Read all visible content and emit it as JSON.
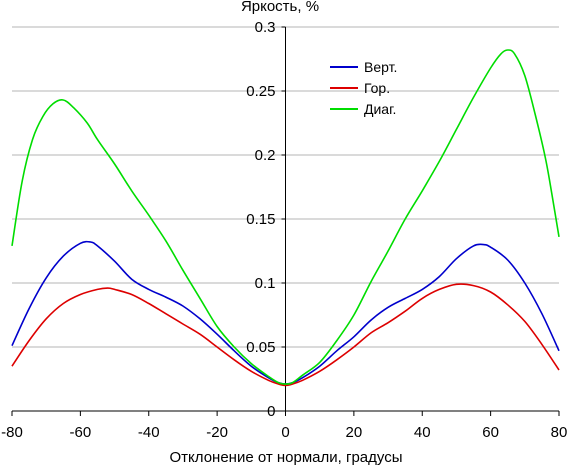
{
  "chart_data": {
    "type": "line",
    "title": "",
    "ylabel": "Яркость, %",
    "xlabel": "Отклонение от нормали, градусы",
    "xlim": [
      -80,
      80
    ],
    "ylim": [
      0,
      0.3
    ],
    "xticks": [
      -80,
      -60,
      -40,
      -20,
      0,
      20,
      40,
      60,
      80
    ],
    "xtick_labels": [
      "-80",
      "-60",
      "-40",
      "-20",
      "0",
      "20",
      "40",
      "60",
      "80"
    ],
    "yticks": [
      0,
      0.05,
      0.1,
      0.15,
      0.2,
      0.25,
      0.3
    ],
    "ytick_labels": [
      "0",
      "0.05",
      "0.1",
      "0.15",
      "0.2",
      "0.25",
      "0.3"
    ],
    "grid": "horizontal",
    "legend_position": "top-right",
    "series": [
      {
        "name": "Верт.",
        "color": "#0000cc",
        "points": [
          [
            -80,
            0.051
          ],
          [
            -75,
            0.08
          ],
          [
            -70,
            0.104
          ],
          [
            -65,
            0.121
          ],
          [
            -60,
            0.131
          ],
          [
            -57,
            0.132
          ],
          [
            -55,
            0.129
          ],
          [
            -50,
            0.117
          ],
          [
            -45,
            0.103
          ],
          [
            -40,
            0.095
          ],
          [
            -35,
            0.089
          ],
          [
            -30,
            0.082
          ],
          [
            -25,
            0.072
          ],
          [
            -20,
            0.06
          ],
          [
            -15,
            0.047
          ],
          [
            -10,
            0.035
          ],
          [
            -5,
            0.026
          ],
          [
            -2,
            0.022
          ],
          [
            0,
            0.021
          ],
          [
            2,
            0.022
          ],
          [
            5,
            0.026
          ],
          [
            10,
            0.035
          ],
          [
            15,
            0.047
          ],
          [
            20,
            0.058
          ],
          [
            25,
            0.071
          ],
          [
            30,
            0.081
          ],
          [
            35,
            0.088
          ],
          [
            40,
            0.095
          ],
          [
            45,
            0.105
          ],
          [
            50,
            0.119
          ],
          [
            55,
            0.129
          ],
          [
            58,
            0.13
          ],
          [
            60,
            0.128
          ],
          [
            65,
            0.118
          ],
          [
            70,
            0.1
          ],
          [
            75,
            0.076
          ],
          [
            80,
            0.047
          ]
        ]
      },
      {
        "name": "Гор.",
        "color": "#dd0000",
        "points": [
          [
            -80,
            0.035
          ],
          [
            -75,
            0.055
          ],
          [
            -70,
            0.072
          ],
          [
            -65,
            0.084
          ],
          [
            -60,
            0.091
          ],
          [
            -55,
            0.095
          ],
          [
            -52,
            0.096
          ],
          [
            -50,
            0.095
          ],
          [
            -45,
            0.091
          ],
          [
            -40,
            0.084
          ],
          [
            -35,
            0.076
          ],
          [
            -30,
            0.068
          ],
          [
            -25,
            0.06
          ],
          [
            -20,
            0.05
          ],
          [
            -15,
            0.04
          ],
          [
            -10,
            0.031
          ],
          [
            -5,
            0.024
          ],
          [
            -2,
            0.021
          ],
          [
            0,
            0.02
          ],
          [
            2,
            0.021
          ],
          [
            5,
            0.024
          ],
          [
            10,
            0.031
          ],
          [
            15,
            0.04
          ],
          [
            20,
            0.05
          ],
          [
            25,
            0.061
          ],
          [
            30,
            0.069
          ],
          [
            35,
            0.078
          ],
          [
            40,
            0.088
          ],
          [
            45,
            0.095
          ],
          [
            50,
            0.099
          ],
          [
            55,
            0.098
          ],
          [
            60,
            0.093
          ],
          [
            65,
            0.083
          ],
          [
            70,
            0.07
          ],
          [
            75,
            0.052
          ],
          [
            80,
            0.032
          ]
        ]
      },
      {
        "name": "Диаг.",
        "color": "#00dd00",
        "points": [
          [
            -80,
            0.129
          ],
          [
            -77,
            0.18
          ],
          [
            -74,
            0.212
          ],
          [
            -71,
            0.23
          ],
          [
            -68,
            0.24
          ],
          [
            -65,
            0.243
          ],
          [
            -62,
            0.237
          ],
          [
            -58,
            0.225
          ],
          [
            -55,
            0.212
          ],
          [
            -50,
            0.193
          ],
          [
            -45,
            0.172
          ],
          [
            -40,
            0.153
          ],
          [
            -35,
            0.133
          ],
          [
            -30,
            0.11
          ],
          [
            -25,
            0.088
          ],
          [
            -20,
            0.066
          ],
          [
            -15,
            0.05
          ],
          [
            -10,
            0.037
          ],
          [
            -5,
            0.027
          ],
          [
            -2,
            0.022
          ],
          [
            0,
            0.021
          ],
          [
            2,
            0.022
          ],
          [
            5,
            0.028
          ],
          [
            10,
            0.038
          ],
          [
            15,
            0.055
          ],
          [
            20,
            0.075
          ],
          [
            25,
            0.101
          ],
          [
            30,
            0.125
          ],
          [
            35,
            0.15
          ],
          [
            40,
            0.172
          ],
          [
            45,
            0.195
          ],
          [
            50,
            0.22
          ],
          [
            55,
            0.245
          ],
          [
            60,
            0.268
          ],
          [
            63,
            0.279
          ],
          [
            65,
            0.282
          ],
          [
            67,
            0.279
          ],
          [
            70,
            0.262
          ],
          [
            73,
            0.232
          ],
          [
            76,
            0.198
          ],
          [
            78,
            0.168
          ],
          [
            80,
            0.136
          ]
        ]
      }
    ]
  }
}
